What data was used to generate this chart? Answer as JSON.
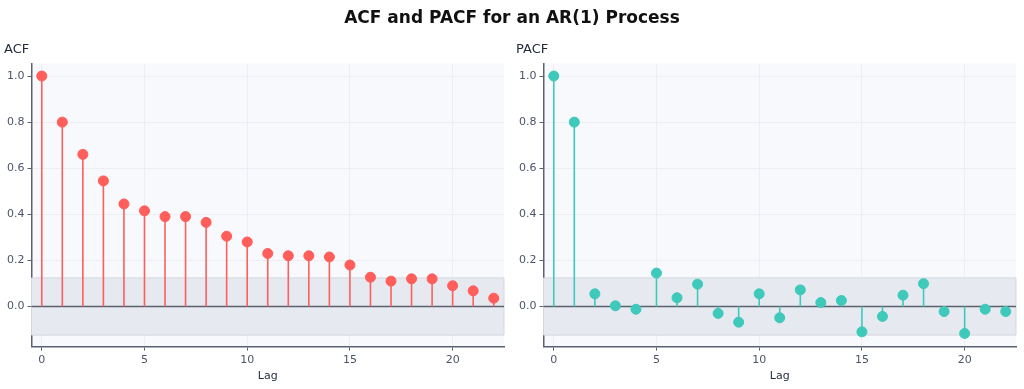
{
  "chart_data": [
    {
      "type": "lollipop",
      "title": "ACF",
      "xlabel": "Lag",
      "annotations": [
        "ACF and PACF for an AR(1) Process"
      ],
      "marker": "circle",
      "grid": true,
      "x": [
        0,
        1,
        2,
        3,
        4,
        5,
        6,
        7,
        8,
        9,
        10,
        11,
        12,
        13,
        14,
        15,
        16,
        17,
        18,
        19,
        20,
        21,
        22
      ],
      "series": [
        {
          "color": "#ff5e5b",
          "values": [
            1.0,
            0.8,
            0.66,
            0.545,
            0.445,
            0.415,
            0.39,
            0.39,
            0.365,
            0.305,
            0.28,
            0.23,
            0.22,
            0.22,
            0.215,
            0.18,
            0.127,
            0.11,
            0.12,
            0.12,
            0.09,
            0.068,
            0.036
          ]
        }
      ],
      "xlim": [
        -0.5,
        22.5
      ],
      "xticks": [
        0,
        5,
        10,
        15,
        20
      ],
      "ylim": [
        -0.174,
        1.054
      ],
      "yticks": [
        {
          "value": 0,
          "label": "0.0"
        },
        {
          "value": 0.2,
          "label": "0.2"
        },
        {
          "value": 0.4,
          "label": "0.4"
        },
        {
          "value": 0.6,
          "label": "0.6"
        },
        {
          "value": 0.8,
          "label": "0.8"
        },
        {
          "value": 1,
          "label": "1.0"
        }
      ],
      "bands": [
        {
          "axis": "y",
          "from": -0.124,
          "to": 0.124,
          "color": "#e6e9ef"
        }
      ],
      "ref_lines": [
        {
          "axis": "y",
          "value": 0,
          "color": "#5a6270"
        }
      ]
    },
    {
      "type": "lollipop",
      "title": "PACF",
      "xlabel": "Lag",
      "marker": "circle",
      "grid": true,
      "x": [
        0,
        1,
        2,
        3,
        4,
        5,
        6,
        7,
        8,
        9,
        10,
        11,
        12,
        13,
        14,
        15,
        16,
        17,
        18,
        19,
        20,
        21,
        22
      ],
      "series": [
        {
          "color": "#3ec9bb",
          "values": [
            1.0,
            0.8,
            0.055,
            0.003,
            -0.012,
            0.145,
            0.038,
            0.097,
            -0.03,
            -0.068,
            0.055,
            -0.049,
            0.072,
            0.017,
            0.026,
            -0.11,
            -0.043,
            0.049,
            0.099,
            -0.022,
            -0.117,
            -0.012,
            -0.022
          ]
        }
      ],
      "xlim": [
        -0.5,
        22.5
      ],
      "xticks": [
        0,
        5,
        10,
        15,
        20
      ],
      "ylim": [
        -0.174,
        1.054
      ],
      "yticks": [
        {
          "value": 0,
          "label": "0.0"
        },
        {
          "value": 0.2,
          "label": "0.2"
        },
        {
          "value": 0.4,
          "label": "0.4"
        },
        {
          "value": 0.6,
          "label": "0.6"
        },
        {
          "value": 0.8,
          "label": "0.8"
        },
        {
          "value": 1,
          "label": "1.0"
        }
      ],
      "bands": [
        {
          "axis": "y",
          "from": -0.124,
          "to": 0.124,
          "color": "#e6e9ef"
        }
      ],
      "ref_lines": [
        {
          "axis": "y",
          "value": 0,
          "color": "#5a6270"
        }
      ]
    }
  ]
}
